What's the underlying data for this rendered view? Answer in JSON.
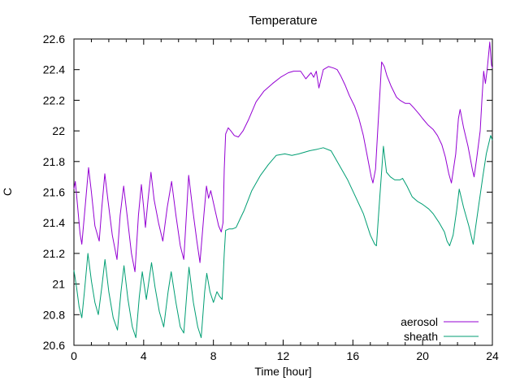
{
  "title": "Temperature",
  "axes": {
    "xlabel": "Time [hour]",
    "ylabel": "C"
  },
  "legend": {
    "items": [
      {
        "label": "aerosol",
        "color": "#9400d3"
      },
      {
        "label": "sheath",
        "color": "#009e73"
      }
    ]
  },
  "chart_data": {
    "type": "line",
    "title": "Temperature",
    "xlabel": "Time [hour]",
    "ylabel": "C",
    "xlim": [
      0,
      24
    ],
    "ylim": [
      20.6,
      22.6
    ],
    "grid": false,
    "legend_position": "inside-bottom-right",
    "x_major_ticks": [
      0,
      4,
      8,
      12,
      16,
      20,
      24
    ],
    "x_tick_labels": [
      "0",
      "4",
      "8",
      "12",
      "16",
      "20",
      "24"
    ],
    "x_minor_step": 1,
    "y_tick_values": [
      20.6,
      20.8,
      21.0,
      21.2,
      21.4,
      21.6,
      21.8,
      22.0,
      22.2,
      22.4,
      22.6
    ],
    "y_tick_labels": [
      "20.6",
      "20.8",
      "21",
      "21.2",
      "21.4",
      "21.6",
      "21.8",
      "22",
      "22.2",
      "22.4",
      "22.6"
    ],
    "series": [
      {
        "name": "aerosol",
        "color": "#9400d3",
        "points": [
          [
            0.0,
            21.62
          ],
          [
            0.08,
            21.67
          ],
          [
            0.2,
            21.52
          ],
          [
            0.35,
            21.33
          ],
          [
            0.45,
            21.26
          ],
          [
            0.6,
            21.45
          ],
          [
            0.84,
            21.76
          ],
          [
            1.0,
            21.6
          ],
          [
            1.2,
            21.38
          ],
          [
            1.45,
            21.28
          ],
          [
            1.6,
            21.5
          ],
          [
            1.77,
            21.72
          ],
          [
            1.95,
            21.55
          ],
          [
            2.2,
            21.32
          ],
          [
            2.47,
            21.16
          ],
          [
            2.65,
            21.45
          ],
          [
            2.85,
            21.64
          ],
          [
            3.05,
            21.45
          ],
          [
            3.3,
            21.2
          ],
          [
            3.5,
            21.08
          ],
          [
            3.7,
            21.45
          ],
          [
            3.87,
            21.65
          ],
          [
            4.0,
            21.5
          ],
          [
            4.1,
            21.37
          ],
          [
            4.25,
            21.55
          ],
          [
            4.42,
            21.73
          ],
          [
            4.6,
            21.55
          ],
          [
            4.85,
            21.4
          ],
          [
            5.1,
            21.28
          ],
          [
            5.35,
            21.5
          ],
          [
            5.6,
            21.67
          ],
          [
            5.85,
            21.45
          ],
          [
            6.1,
            21.25
          ],
          [
            6.3,
            21.16
          ],
          [
            6.45,
            21.45
          ],
          [
            6.58,
            21.71
          ],
          [
            6.8,
            21.5
          ],
          [
            7.05,
            21.28
          ],
          [
            7.23,
            21.14
          ],
          [
            7.45,
            21.45
          ],
          [
            7.6,
            21.64
          ],
          [
            7.72,
            21.56
          ],
          [
            7.85,
            21.61
          ],
          [
            8.1,
            21.48
          ],
          [
            8.3,
            21.38
          ],
          [
            8.45,
            21.34
          ],
          [
            8.55,
            21.4
          ],
          [
            8.62,
            21.75
          ],
          [
            8.7,
            21.98
          ],
          [
            8.85,
            22.02
          ],
          [
            9.0,
            22.0
          ],
          [
            9.2,
            21.97
          ],
          [
            9.43,
            21.96
          ],
          [
            9.7,
            22.0
          ],
          [
            10.0,
            22.07
          ],
          [
            10.45,
            22.19
          ],
          [
            10.9,
            22.26
          ],
          [
            11.4,
            22.31
          ],
          [
            11.85,
            22.35
          ],
          [
            12.3,
            22.38
          ],
          [
            12.6,
            22.39
          ],
          [
            13.0,
            22.39
          ],
          [
            13.3,
            22.34
          ],
          [
            13.6,
            22.38
          ],
          [
            13.75,
            22.35
          ],
          [
            13.9,
            22.39
          ],
          [
            14.05,
            22.28
          ],
          [
            14.3,
            22.4
          ],
          [
            14.6,
            22.42
          ],
          [
            14.9,
            22.41
          ],
          [
            15.1,
            22.4
          ],
          [
            15.3,
            22.36
          ],
          [
            15.55,
            22.3
          ],
          [
            15.8,
            22.23
          ],
          [
            16.1,
            22.16
          ],
          [
            16.35,
            22.08
          ],
          [
            16.6,
            21.97
          ],
          [
            16.85,
            21.82
          ],
          [
            17.05,
            21.7
          ],
          [
            17.15,
            21.66
          ],
          [
            17.3,
            21.75
          ],
          [
            17.45,
            22.05
          ],
          [
            17.55,
            22.25
          ],
          [
            17.65,
            22.45
          ],
          [
            17.8,
            22.42
          ],
          [
            17.95,
            22.36
          ],
          [
            18.2,
            22.29
          ],
          [
            18.5,
            22.22
          ],
          [
            18.7,
            22.2
          ],
          [
            19.0,
            22.18
          ],
          [
            19.25,
            22.18
          ],
          [
            19.5,
            22.15
          ],
          [
            19.8,
            22.11
          ],
          [
            20.0,
            22.08
          ],
          [
            20.3,
            22.04
          ],
          [
            20.6,
            22.01
          ],
          [
            20.85,
            21.97
          ],
          [
            21.1,
            21.91
          ],
          [
            21.3,
            21.83
          ],
          [
            21.5,
            21.72
          ],
          [
            21.65,
            21.66
          ],
          [
            21.9,
            21.85
          ],
          [
            22.05,
            22.08
          ],
          [
            22.15,
            22.14
          ],
          [
            22.35,
            22.02
          ],
          [
            22.6,
            21.9
          ],
          [
            22.85,
            21.75
          ],
          [
            22.95,
            21.7
          ],
          [
            23.1,
            21.82
          ],
          [
            23.3,
            22.0
          ],
          [
            23.4,
            22.2
          ],
          [
            23.5,
            22.39
          ],
          [
            23.6,
            22.31
          ],
          [
            23.7,
            22.4
          ],
          [
            23.85,
            22.58
          ],
          [
            23.95,
            22.43
          ],
          [
            24.0,
            22.41
          ]
        ]
      },
      {
        "name": "sheath",
        "color": "#009e73",
        "points": [
          [
            0.0,
            21.09
          ],
          [
            0.15,
            20.98
          ],
          [
            0.3,
            20.85
          ],
          [
            0.45,
            20.78
          ],
          [
            0.6,
            20.95
          ],
          [
            0.8,
            21.2
          ],
          [
            1.0,
            21.02
          ],
          [
            1.2,
            20.88
          ],
          [
            1.4,
            20.8
          ],
          [
            1.6,
            20.98
          ],
          [
            1.78,
            21.16
          ],
          [
            2.0,
            20.95
          ],
          [
            2.25,
            20.78
          ],
          [
            2.5,
            20.7
          ],
          [
            2.7,
            20.95
          ],
          [
            2.87,
            21.12
          ],
          [
            3.1,
            20.9
          ],
          [
            3.35,
            20.72
          ],
          [
            3.55,
            20.65
          ],
          [
            3.75,
            20.92
          ],
          [
            3.92,
            21.08
          ],
          [
            4.15,
            20.9
          ],
          [
            4.45,
            21.14
          ],
          [
            4.65,
            20.98
          ],
          [
            4.9,
            20.82
          ],
          [
            5.15,
            20.72
          ],
          [
            5.4,
            20.95
          ],
          [
            5.58,
            21.08
          ],
          [
            5.85,
            20.88
          ],
          [
            6.1,
            20.72
          ],
          [
            6.3,
            20.68
          ],
          [
            6.48,
            20.95
          ],
          [
            6.6,
            21.11
          ],
          [
            6.85,
            20.88
          ],
          [
            7.1,
            20.72
          ],
          [
            7.3,
            20.65
          ],
          [
            7.5,
            20.95
          ],
          [
            7.62,
            21.07
          ],
          [
            7.8,
            20.95
          ],
          [
            8.0,
            20.88
          ],
          [
            8.2,
            20.95
          ],
          [
            8.35,
            20.92
          ],
          [
            8.5,
            20.9
          ],
          [
            8.62,
            21.2
          ],
          [
            8.7,
            21.35
          ],
          [
            8.9,
            21.36
          ],
          [
            9.1,
            21.36
          ],
          [
            9.3,
            21.37
          ],
          [
            9.55,
            21.43
          ],
          [
            9.76,
            21.48
          ],
          [
            10.2,
            21.61
          ],
          [
            10.7,
            21.71
          ],
          [
            11.15,
            21.78
          ],
          [
            11.6,
            21.84
          ],
          [
            12.1,
            21.85
          ],
          [
            12.5,
            21.84
          ],
          [
            12.9,
            21.85
          ],
          [
            13.5,
            21.87
          ],
          [
            13.95,
            21.88
          ],
          [
            14.3,
            21.89
          ],
          [
            14.75,
            21.87
          ],
          [
            15.2,
            21.78
          ],
          [
            15.7,
            21.68
          ],
          [
            16.15,
            21.57
          ],
          [
            16.6,
            21.46
          ],
          [
            17.0,
            21.32
          ],
          [
            17.25,
            21.26
          ],
          [
            17.35,
            21.25
          ],
          [
            17.55,
            21.58
          ],
          [
            17.75,
            21.9
          ],
          [
            17.93,
            21.73
          ],
          [
            18.15,
            21.7
          ],
          [
            18.4,
            21.68
          ],
          [
            18.7,
            21.68
          ],
          [
            18.85,
            21.69
          ],
          [
            19.1,
            21.64
          ],
          [
            19.4,
            21.57
          ],
          [
            19.7,
            21.54
          ],
          [
            20.0,
            21.52
          ],
          [
            20.35,
            21.49
          ],
          [
            20.6,
            21.46
          ],
          [
            20.95,
            21.4
          ],
          [
            21.25,
            21.34
          ],
          [
            21.4,
            21.28
          ],
          [
            21.55,
            21.25
          ],
          [
            21.75,
            21.32
          ],
          [
            21.95,
            21.48
          ],
          [
            22.1,
            21.62
          ],
          [
            22.35,
            21.5
          ],
          [
            22.65,
            21.38
          ],
          [
            22.9,
            21.26
          ],
          [
            23.2,
            21.5
          ],
          [
            23.45,
            21.7
          ],
          [
            23.65,
            21.85
          ],
          [
            23.9,
            21.97
          ],
          [
            24.0,
            21.94
          ]
        ]
      }
    ]
  }
}
